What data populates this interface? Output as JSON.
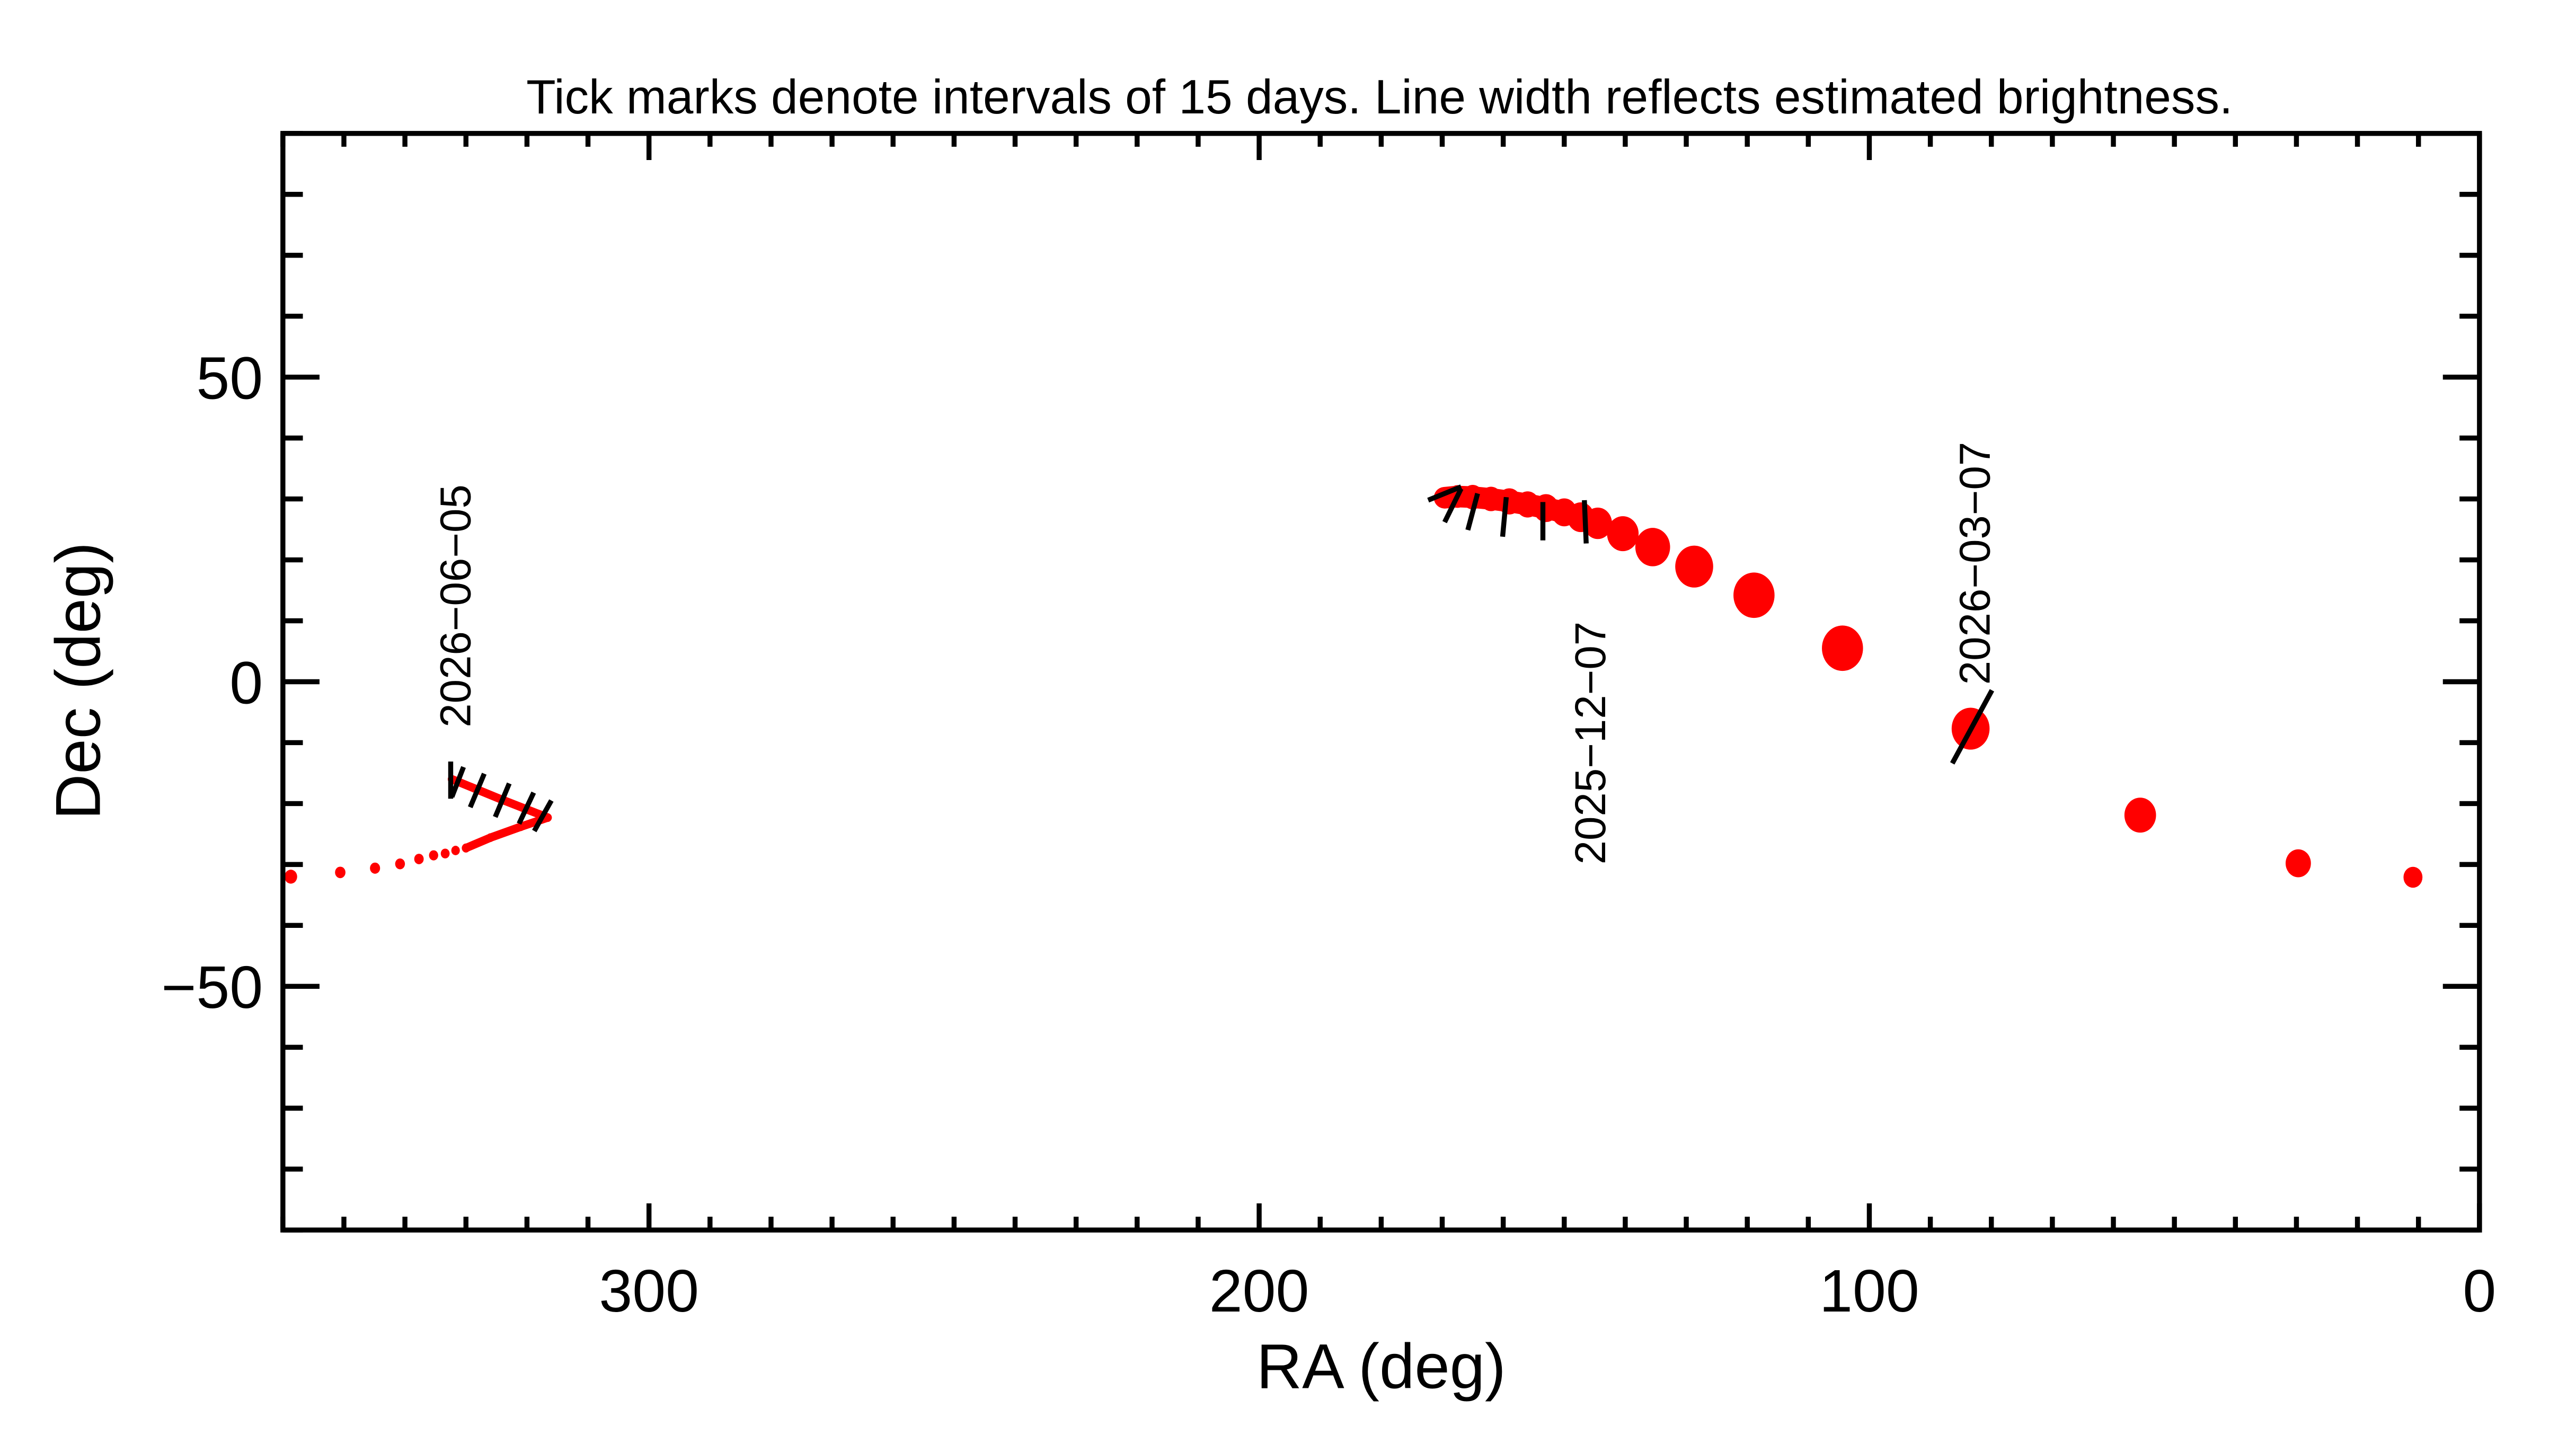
{
  "chart_data": {
    "type": "scatter",
    "title": "Tick marks denote intervals of 15 days.  Line width reflects estimated brightness.",
    "xlabel": "RA (deg)",
    "ylabel": "Dec (deg)",
    "xlim": [
      360,
      0
    ],
    "ylim": [
      -90,
      90
    ],
    "x_major_ticks": [
      300,
      200,
      100,
      0
    ],
    "x_tick_labels": [
      "300",
      "200",
      "100",
      "0"
    ],
    "y_major_ticks": [
      50,
      0,
      -50
    ],
    "y_tick_labels": [
      "50",
      "0",
      "−50"
    ],
    "minor_tick_step": 10,
    "grid": false,
    "color": "#ff0000",
    "series": [
      {
        "name": "track-main",
        "points": [
          {
            "ra": 169.6,
            "dec": 30.2,
            "size": 6
          },
          {
            "ra": 167.5,
            "dec": 30.4,
            "size": 6.5
          },
          {
            "ra": 165.0,
            "dec": 30.3,
            "size": 7
          },
          {
            "ra": 162.0,
            "dec": 30.0,
            "size": 7
          },
          {
            "ra": 159.0,
            "dec": 29.6,
            "size": 7.5
          },
          {
            "ra": 156.0,
            "dec": 29.1,
            "size": 7.5
          },
          {
            "ra": 153.0,
            "dec": 28.5,
            "size": 8
          },
          {
            "ra": 150.0,
            "dec": 27.8,
            "size": 8
          },
          {
            "ra": 147.3,
            "dec": 27.0,
            "size": 8.5
          },
          {
            "ra": 144.5,
            "dec": 26.0,
            "size": 9
          },
          {
            "ra": 140.4,
            "dec": 24.3,
            "size": 10
          },
          {
            "ra": 135.5,
            "dec": 22.1,
            "size": 11
          },
          {
            "ra": 128.7,
            "dec": 18.9,
            "size": 12
          },
          {
            "ra": 118.9,
            "dec": 14.2,
            "size": 13
          },
          {
            "ra": 104.4,
            "dec": 5.5,
            "size": 13
          },
          {
            "ra": 83.4,
            "dec": -7.7,
            "size": 12
          },
          {
            "ra": 55.6,
            "dec": -21.9,
            "size": 10
          },
          {
            "ra": 29.7,
            "dec": -29.8,
            "size": 8
          },
          {
            "ra": 10.9,
            "dec": -32.1,
            "size": 6
          }
        ]
      },
      {
        "name": "track-left",
        "points": [
          {
            "ra": 332.3,
            "dec": -16.0,
            "size": 2
          },
          {
            "ra": 324.5,
            "dec": -19.2,
            "size": 2.2
          },
          {
            "ra": 316.6,
            "dec": -22.3,
            "size": 2.5
          },
          {
            "ra": 321.0,
            "dec": -23.8,
            "size": 2.5
          },
          {
            "ra": 326.0,
            "dec": -25.6,
            "size": 2.5
          },
          {
            "ra": 330.0,
            "dec": -27.3,
            "size": 2.6
          },
          {
            "ra": 331.7,
            "dec": -27.7,
            "size": 2.7
          },
          {
            "ra": 333.4,
            "dec": -28.2,
            "size": 2.8
          },
          {
            "ra": 335.3,
            "dec": -28.5,
            "size": 2.9
          },
          {
            "ra": 337.7,
            "dec": -29.1,
            "size": 3
          },
          {
            "ra": 340.8,
            "dec": -29.9,
            "size": 3.1
          },
          {
            "ra": 344.9,
            "dec": -30.6,
            "size": 3.2
          },
          {
            "ra": 350.6,
            "dec": -31.3,
            "size": 3.3
          },
          {
            "ra": 358.7,
            "dec": -32.0,
            "size": 4
          }
        ]
      }
    ],
    "interval_ticks": [
      {
        "from": [
          172.3,
          29.8
        ],
        "to": [
          166.9,
          32.0
        ]
      },
      {
        "from": [
          169.6,
          26.2
        ],
        "to": [
          166.9,
          31.7
        ]
      },
      {
        "from": [
          165.8,
          24.9
        ],
        "to": [
          164.2,
          30.9
        ]
      },
      {
        "from": [
          160.1,
          23.8
        ],
        "to": [
          159.5,
          30.3
        ]
      },
      {
        "from": [
          153.5,
          23.2
        ],
        "to": [
          153.5,
          29.5
        ]
      },
      {
        "from": [
          146.4,
          22.7
        ],
        "to": [
          146.7,
          29.8
        ]
      },
      {
        "from": [
          86.4,
          -13.4
        ],
        "to": [
          79.9,
          -1.4
        ]
      },
      {
        "from": [
          332.5,
          -13.1
        ],
        "to": [
          332.5,
          -19.2
        ]
      },
      {
        "from": [
          330.4,
          -14.0
        ],
        "to": [
          332.3,
          -18.9
        ]
      },
      {
        "from": [
          327.0,
          -15.1
        ],
        "to": [
          329.3,
          -20.6
        ]
      },
      {
        "from": [
          322.9,
          -16.7
        ],
        "to": [
          325.2,
          -22.2
        ]
      },
      {
        "from": [
          318.9,
          -18.2
        ],
        "to": [
          321.3,
          -23.3
        ]
      },
      {
        "from": [
          316.0,
          -19.5
        ],
        "to": [
          318.8,
          -24.5
        ]
      }
    ],
    "annotations": [
      {
        "text": "2026-06-05",
        "ra": 332.0,
        "dec": -7.5
      },
      {
        "text": "2025-12-07",
        "ra": 146.0,
        "dec": -30.0
      },
      {
        "text": "2026-03-07",
        "ra": 83.0,
        "dec": -0.5
      }
    ]
  }
}
